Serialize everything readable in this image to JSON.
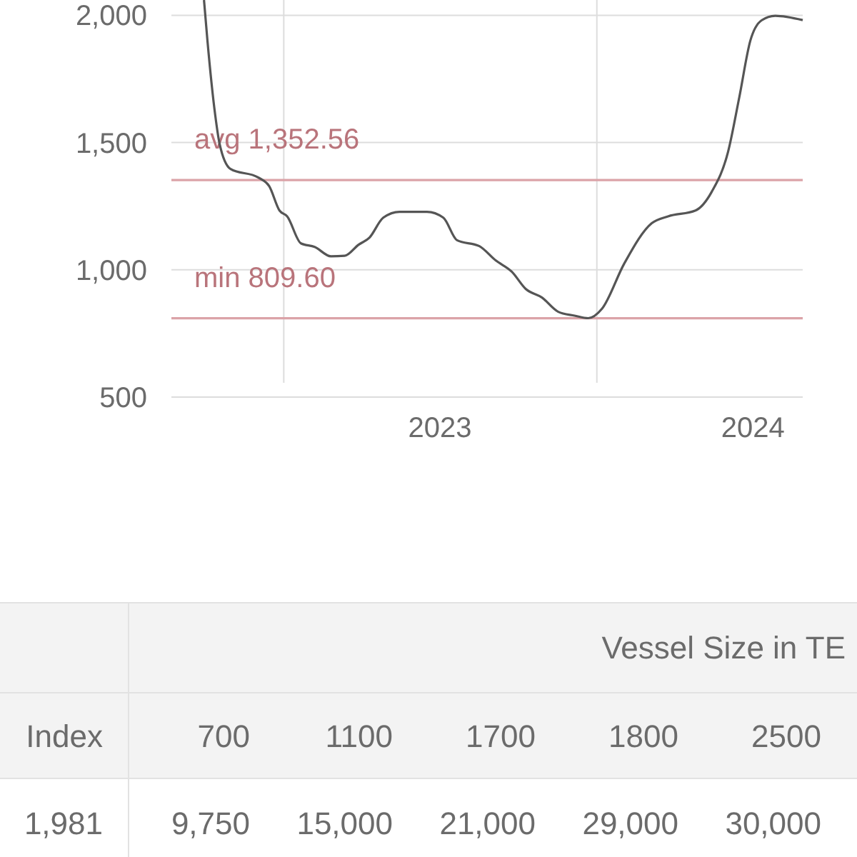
{
  "chart_data": [
    {
      "type": "line",
      "x": [
        "2022-09-30",
        "2022-10-04",
        "2022-10-13",
        "2022-10-18",
        "2022-10-31",
        "2022-12-02",
        "2022-12-15",
        "2022-12-27",
        "2023-01-05",
        "2023-01-21",
        "2023-02-06",
        "2023-02-25",
        "2023-03-13",
        "2023-03-29",
        "2023-04-11",
        "2023-04-27",
        "2023-05-16",
        "2023-06-17",
        "2023-07-06",
        "2023-07-22",
        "2023-08-17",
        "2023-09-05",
        "2023-09-24",
        "2023-10-10",
        "2023-10-29",
        "2023-11-17",
        "2023-12-06",
        "2023-12-22",
        "2024-01-07",
        "2024-02-02",
        "2024-03-05",
        "2024-03-24",
        "2024-04-25",
        "2024-05-14",
        "2024-06-02",
        "2024-06-15",
        "2024-06-28",
        "2024-07-11",
        "2024-07-27",
        "2024-08-28"
      ],
      "series": [
        {
          "color": "#555555",
          "values": [
            2060,
            1901,
            1610,
            1498,
            1396,
            1363,
            1329,
            1233,
            1210,
            1104,
            1090,
            1053,
            1055,
            1098,
            1127,
            1205,
            1228,
            1228,
            1205,
            1116,
            1093,
            1037,
            992,
            925,
            891,
            835,
            820,
            810,
            847,
            1025,
            1183,
            1210,
            1233,
            1307,
            1464,
            1677,
            1901,
            1980,
            1998,
            1981
          ]
        }
      ],
      "xlim": [
        "2022-08-23",
        "2024-08-28"
      ],
      "xticks": [
        {
          "value": "2023-01-01",
          "label": null
        },
        {
          "value": "2023-07-02",
          "label": "2023"
        },
        {
          "value": "2024-01-01",
          "label": null
        },
        {
          "value": "2024-07-01",
          "label": "2024"
        }
      ],
      "ylim": [
        500,
        2060
      ],
      "yticks": [
        {
          "value": 500,
          "label": "500"
        },
        {
          "value": 1000,
          "label": "1,000"
        },
        {
          "value": 1500,
          "label": "1,500"
        },
        {
          "value": 2000,
          "label": "2,000"
        }
      ],
      "grid": true,
      "marker": "none",
      "line_style": "solid",
      "ref_lines": [
        {
          "axis": "y",
          "value": 1352.56,
          "label": "avg 1,352.56",
          "color": "#dba3a8"
        },
        {
          "axis": "y",
          "value": 809.6,
          "label": "min 809.60",
          "color": "#dba3a8"
        }
      ]
    },
    {
      "type": "other",
      "title": "Vessel Size in TE",
      "categories": [
        "Index",
        "700",
        "1100",
        "1700",
        "1800",
        "2500"
      ],
      "annotations": [
        "1,981",
        "9,750",
        "15,000",
        "21,000",
        "29,000",
        "30,000"
      ]
    }
  ]
}
